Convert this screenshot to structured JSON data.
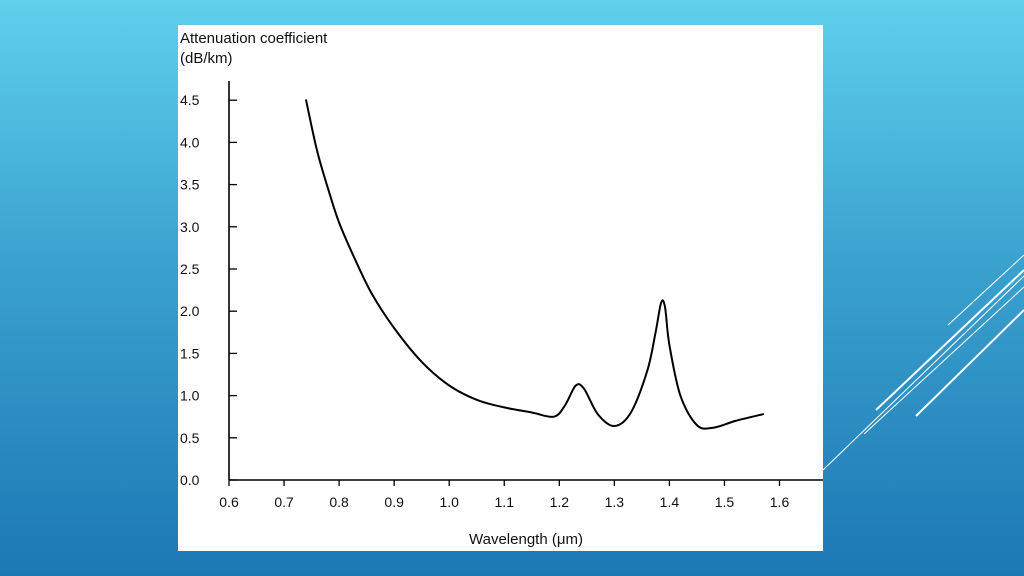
{
  "slide": {
    "background_top": "#5fd0ec",
    "background_bottom": "#1d78b4",
    "decor_line_color": "#ffffff"
  },
  "chart_data": {
    "type": "line",
    "title": "",
    "ylabel": "Attenuation coefficient",
    "ylabel_unit": "(dB/km)",
    "xlabel": "Wavelength (μm)",
    "xlim": [
      0.6,
      1.65
    ],
    "ylim": [
      0.0,
      4.7
    ],
    "x_ticks": [
      "0.6",
      "0.7",
      "0.8",
      "0.9",
      "1.0",
      "1.1",
      "1.2",
      "1.3",
      "1.4",
      "1.5",
      "1.6"
    ],
    "y_ticks": [
      "0.0",
      "0.5",
      "1.0",
      "1.5",
      "2.0",
      "2.5",
      "3.0",
      "3.5",
      "4.0",
      "4.5"
    ],
    "grid": false,
    "series": [
      {
        "name": "attenuation",
        "x": [
          0.74,
          0.76,
          0.78,
          0.8,
          0.83,
          0.86,
          0.9,
          0.95,
          1.0,
          1.05,
          1.1,
          1.15,
          1.19,
          1.21,
          1.23,
          1.245,
          1.27,
          1.3,
          1.33,
          1.36,
          1.375,
          1.385,
          1.392,
          1.4,
          1.42,
          1.45,
          1.48,
          1.52,
          1.57
        ],
        "y": [
          4.5,
          3.9,
          3.45,
          3.05,
          2.6,
          2.2,
          1.8,
          1.4,
          1.12,
          0.95,
          0.86,
          0.8,
          0.75,
          0.88,
          1.12,
          1.08,
          0.78,
          0.64,
          0.8,
          1.3,
          1.75,
          2.1,
          2.05,
          1.6,
          1.0,
          0.65,
          0.62,
          0.7,
          0.78
        ]
      }
    ]
  }
}
